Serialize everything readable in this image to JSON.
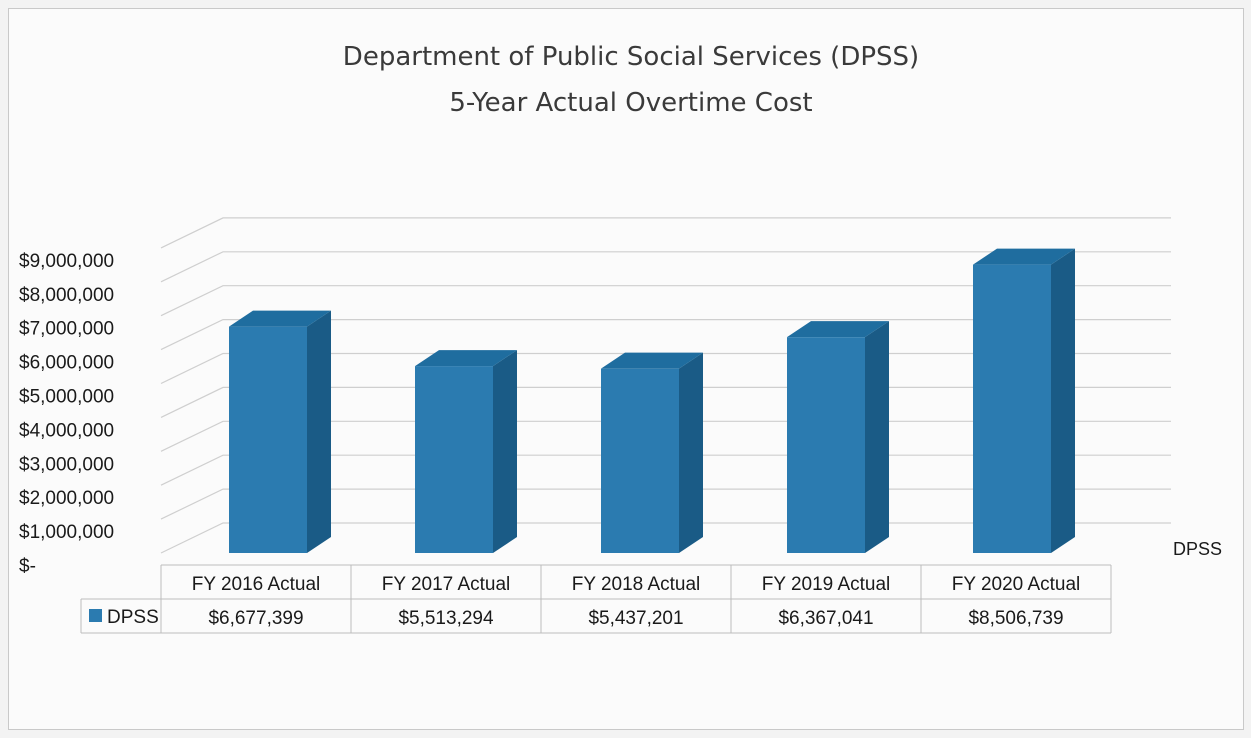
{
  "chart_data": {
    "type": "bar",
    "title": "Department of Public Social Services (DPSS)",
    "subtitle": "5-Year Actual Overtime Cost",
    "categories": [
      "FY 2016 Actual",
      "FY 2017 Actual",
      "FY 2018 Actual",
      "FY 2019 Actual",
      "FY 2020 Actual"
    ],
    "series": [
      {
        "name": "DPSS",
        "values": [
          6677399,
          5513294,
          5437201,
          6367041,
          8506739
        ],
        "display_values": [
          "$6,677,399",
          "$5,513,294",
          "$5,437,201",
          "$6,367,041",
          "$8,506,739"
        ]
      }
    ],
    "ylim": [
      0,
      9000000
    ],
    "ytick_labels": [
      "$-",
      "$1,000,000",
      "$2,000,000",
      "$3,000,000",
      "$4,000,000",
      "$5,000,000",
      "$6,000,000",
      "$7,000,000",
      "$8,000,000",
      "$9,000,000"
    ],
    "grid": true,
    "style": "3d-column",
    "legend": "data-table",
    "depth_axis_label": "DPSS",
    "colors": {
      "bar_front": "#2b7bb0",
      "bar_top": "#1f6d9f",
      "bar_side": "#1a5b86",
      "gridline": "#cfcfcf"
    }
  }
}
